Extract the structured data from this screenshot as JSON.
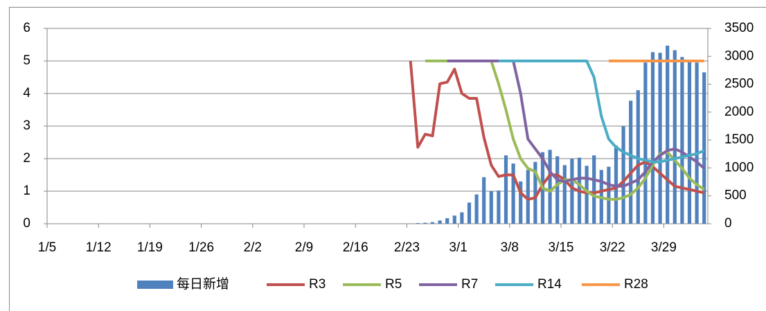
{
  "chart_data": {
    "type": "combo",
    "categories": [
      "1/5",
      null,
      null,
      null,
      null,
      null,
      null,
      "1/12",
      null,
      null,
      null,
      null,
      null,
      null,
      "1/19",
      null,
      null,
      null,
      null,
      null,
      null,
      "1/26",
      null,
      null,
      null,
      null,
      null,
      null,
      "2/2",
      null,
      null,
      null,
      null,
      null,
      null,
      "2/9",
      null,
      null,
      null,
      null,
      null,
      null,
      "2/16",
      null,
      null,
      null,
      null,
      null,
      null,
      "2/23",
      null,
      null,
      null,
      null,
      null,
      null,
      "3/1",
      null,
      null,
      null,
      null,
      null,
      null,
      "3/8",
      null,
      null,
      null,
      null,
      null,
      null,
      "3/15",
      null,
      null,
      null,
      null,
      null,
      null,
      "3/22",
      null,
      null,
      null,
      null,
      null,
      null,
      "3/29",
      null,
      null,
      null,
      null,
      null
    ],
    "ylim": [
      0,
      6
    ],
    "yticks": [
      0,
      1,
      2,
      3,
      4,
      5,
      6
    ],
    "y2lim": [
      0,
      3500
    ],
    "y2ticks": [
      0,
      500,
      1000,
      1500,
      2000,
      2500,
      3000,
      3500
    ],
    "grid": true,
    "legend": "bottom",
    "series": [
      {
        "name": "每日新增",
        "type": "bar",
        "axis": "y2",
        "color": "#4f81bd",
        "values": [
          0,
          0,
          0,
          0,
          0,
          0,
          0,
          0,
          0,
          0,
          0,
          0,
          0,
          0,
          0,
          0,
          0,
          0,
          0,
          0,
          0,
          0,
          0,
          0,
          0,
          0,
          0,
          0,
          0,
          0,
          0,
          0,
          0,
          0,
          0,
          0,
          0,
          0,
          0,
          0,
          0,
          0,
          0,
          0,
          0,
          0,
          0,
          0,
          0,
          6,
          12,
          17,
          29,
          58,
          99,
          146,
          204,
          379,
          525,
          834,
          583,
          595,
          1225,
          1079,
          758,
          963,
          1108,
          1283,
          1324,
          1208,
          1050,
          1167,
          1184,
          1038,
          1225,
          963,
          1021,
          1400,
          1750,
          2205,
          2392,
          2888,
          3074,
          3063,
          3191,
          3109,
          2987,
          2917,
          2888,
          2713
        ]
      },
      {
        "name": "R3",
        "type": "line",
        "color": "#c0504d",
        "values": [
          null,
          null,
          null,
          null,
          null,
          null,
          null,
          null,
          null,
          null,
          null,
          null,
          null,
          null,
          null,
          null,
          null,
          null,
          null,
          null,
          null,
          null,
          null,
          null,
          null,
          null,
          null,
          null,
          null,
          null,
          null,
          null,
          null,
          null,
          null,
          null,
          null,
          null,
          null,
          null,
          null,
          null,
          null,
          null,
          null,
          null,
          null,
          null,
          null,
          5,
          2.35,
          2.75,
          2.7,
          4.3,
          4.35,
          4.75,
          4.0,
          3.85,
          3.85,
          2.65,
          1.8,
          1.45,
          1.5,
          1.5,
          0.95,
          0.75,
          0.8,
          1.2,
          1.5,
          1.5,
          1.35,
          1.1,
          1.0,
          0.95,
          0.95,
          1.0,
          1.05,
          1.1,
          1.3,
          1.55,
          1.8,
          1.9,
          1.75,
          1.55,
          1.35,
          1.15,
          1.1,
          1.05,
          1.0,
          0.95
        ]
      },
      {
        "name": "R5",
        "type": "line",
        "color": "#9bbb59",
        "values": [
          null,
          null,
          null,
          null,
          null,
          null,
          null,
          null,
          null,
          null,
          null,
          null,
          null,
          null,
          null,
          null,
          null,
          null,
          null,
          null,
          null,
          null,
          null,
          null,
          null,
          null,
          null,
          null,
          null,
          null,
          null,
          null,
          null,
          null,
          null,
          null,
          null,
          null,
          null,
          null,
          null,
          null,
          null,
          null,
          null,
          null,
          null,
          null,
          null,
          null,
          null,
          5,
          5,
          5,
          5,
          5,
          5,
          5,
          5,
          5,
          5,
          4.3,
          3.5,
          2.6,
          2.0,
          1.7,
          1.6,
          1.1,
          1.0,
          1.2,
          1.35,
          1.35,
          1.2,
          1.0,
          0.85,
          0.8,
          0.75,
          0.75,
          0.8,
          0.9,
          1.1,
          1.4,
          1.8,
          2.15,
          2.2,
          1.95,
          1.7,
          1.4,
          1.2,
          1.05
        ]
      },
      {
        "name": "R7",
        "type": "line",
        "color": "#8064a2",
        "values": [
          null,
          null,
          null,
          null,
          null,
          null,
          null,
          null,
          null,
          null,
          null,
          null,
          null,
          null,
          null,
          null,
          null,
          null,
          null,
          null,
          null,
          null,
          null,
          null,
          null,
          null,
          null,
          null,
          null,
          null,
          null,
          null,
          null,
          null,
          null,
          null,
          null,
          null,
          null,
          null,
          null,
          null,
          null,
          null,
          null,
          null,
          null,
          null,
          null,
          null,
          null,
          null,
          null,
          null,
          5,
          5,
          5,
          5,
          5,
          5,
          5,
          5,
          5,
          5,
          4.0,
          2.6,
          2.3,
          2.0,
          1.6,
          1.35,
          1.3,
          1.35,
          1.4,
          1.4,
          1.35,
          1.3,
          1.2,
          1.15,
          1.15,
          1.25,
          1.35,
          1.6,
          1.9,
          2.1,
          2.25,
          2.3,
          2.2,
          2.05,
          1.9,
          1.7
        ]
      },
      {
        "name": "R14",
        "type": "line",
        "color": "#4bacc6",
        "values": [
          null,
          null,
          null,
          null,
          null,
          null,
          null,
          null,
          null,
          null,
          null,
          null,
          null,
          null,
          null,
          null,
          null,
          null,
          null,
          null,
          null,
          null,
          null,
          null,
          null,
          null,
          null,
          null,
          null,
          null,
          null,
          null,
          null,
          null,
          null,
          null,
          null,
          null,
          null,
          null,
          null,
          null,
          null,
          null,
          null,
          null,
          null,
          null,
          null,
          null,
          null,
          null,
          null,
          null,
          null,
          null,
          null,
          null,
          null,
          null,
          null,
          5,
          5,
          5,
          5,
          5,
          5,
          5,
          5,
          5,
          5,
          5,
          5,
          5,
          4.5,
          3.3,
          2.6,
          2.35,
          2.2,
          2.1,
          2.0,
          1.95,
          1.9,
          1.9,
          1.95,
          2.0,
          2.05,
          2.1,
          2.15,
          2.25
        ]
      },
      {
        "name": "R28",
        "type": "line",
        "color": "#f79646",
        "values": [
          null,
          null,
          null,
          null,
          null,
          null,
          null,
          null,
          null,
          null,
          null,
          null,
          null,
          null,
          null,
          null,
          null,
          null,
          null,
          null,
          null,
          null,
          null,
          null,
          null,
          null,
          null,
          null,
          null,
          null,
          null,
          null,
          null,
          null,
          null,
          null,
          null,
          null,
          null,
          null,
          null,
          null,
          null,
          null,
          null,
          null,
          null,
          null,
          null,
          null,
          null,
          null,
          null,
          null,
          null,
          null,
          null,
          null,
          null,
          null,
          null,
          null,
          null,
          null,
          null,
          null,
          null,
          null,
          null,
          null,
          null,
          null,
          null,
          null,
          null,
          null,
          5,
          5,
          5,
          5,
          5,
          5,
          5,
          5,
          5,
          5,
          5,
          5,
          5,
          5
        ]
      }
    ]
  }
}
